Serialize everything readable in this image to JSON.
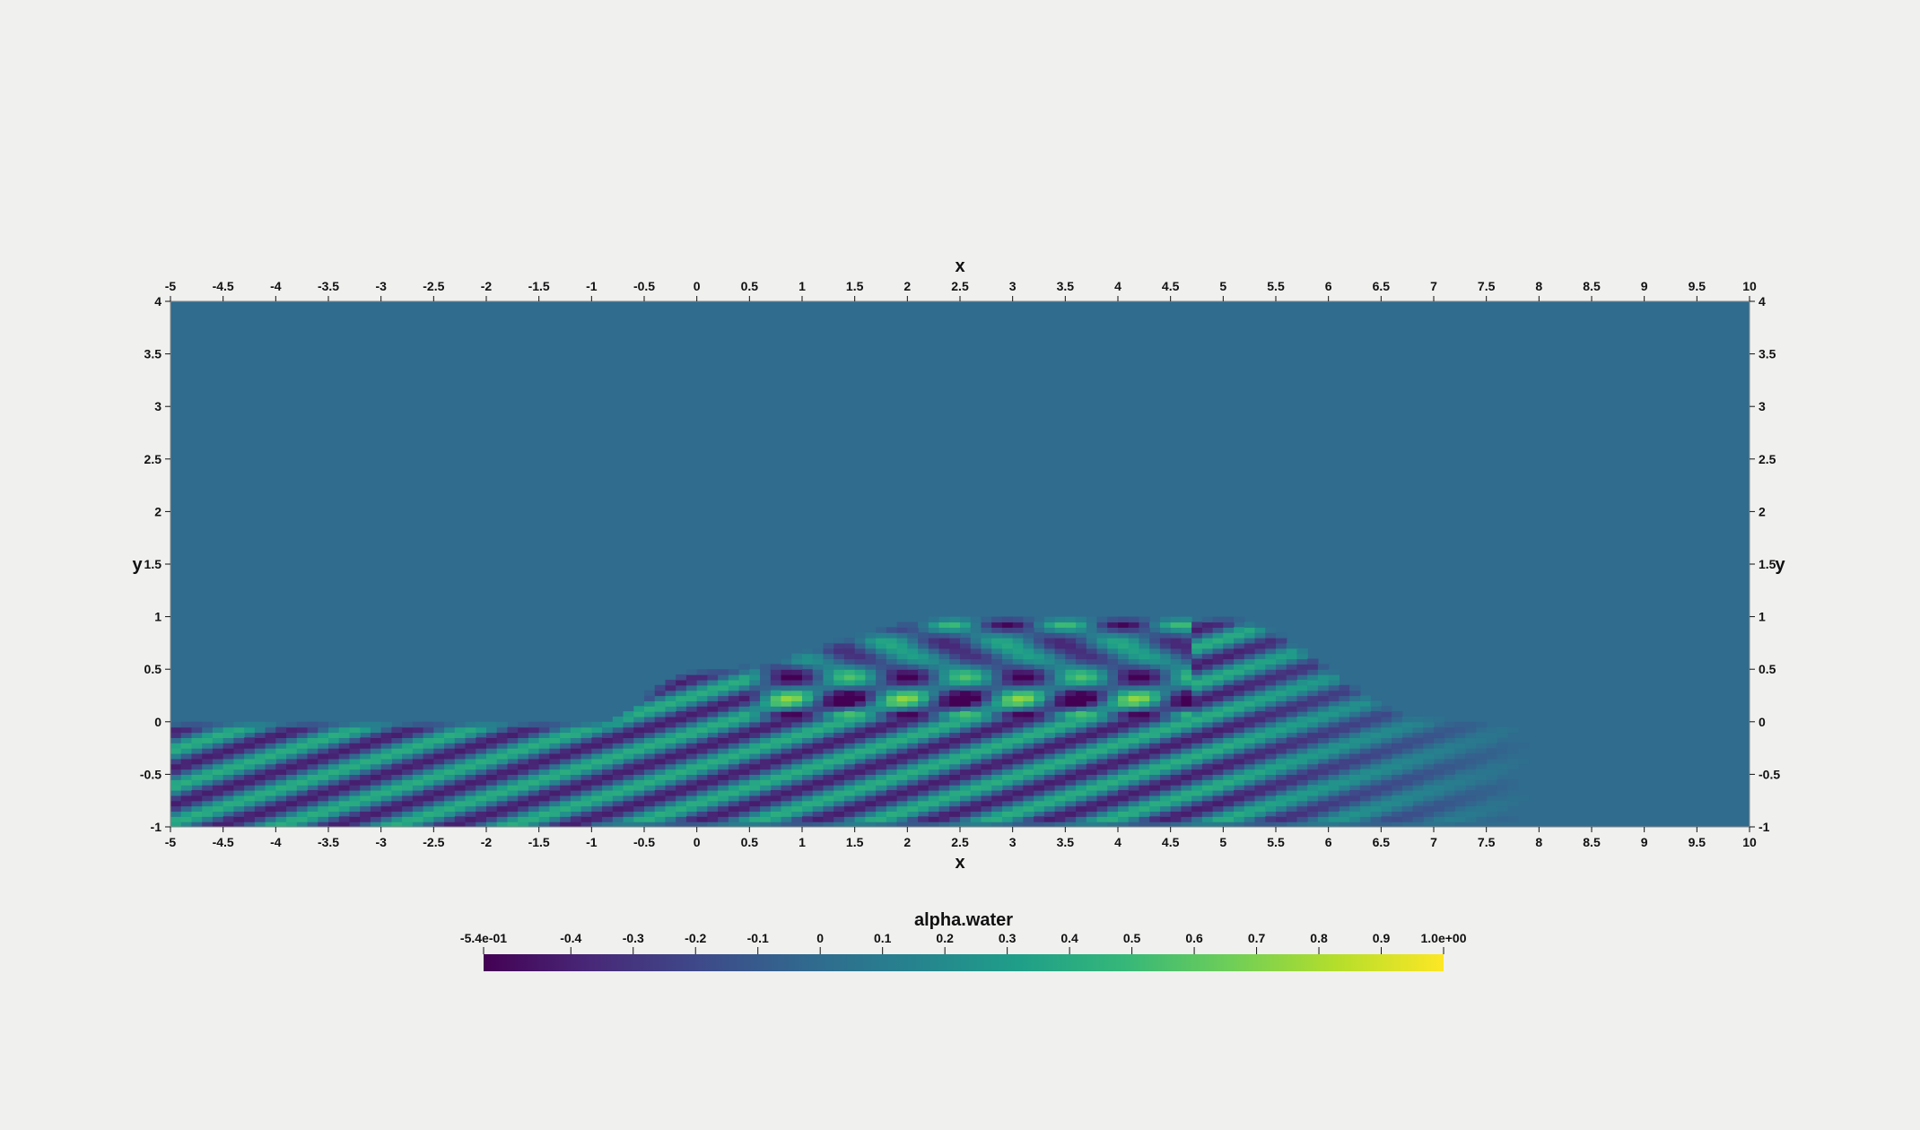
{
  "chart_data": {
    "type": "heatmap",
    "x_axis_label": "x",
    "y_axis_label": "y",
    "xlim": [
      -5,
      10
    ],
    "ylim": [
      -1,
      4
    ],
    "x_ticks": [
      -5,
      -4.5,
      -4,
      -3.5,
      -3,
      -2.5,
      -2,
      -1.5,
      -1,
      -0.5,
      0,
      0.5,
      1,
      1.5,
      2,
      2.5,
      3,
      3.5,
      4,
      4.5,
      5,
      5.5,
      6,
      6.5,
      7,
      7.5,
      8,
      8.5,
      9,
      9.5,
      10
    ],
    "y_ticks": [
      -1,
      -0.5,
      0,
      0.5,
      1,
      1.5,
      2,
      2.5,
      3,
      3.5,
      4
    ],
    "background_value": 0,
    "field_description": "wave interference pattern bounded by the bathymetry surface; region above surface has uniform value",
    "surface_profile": {
      "x": [
        -5,
        -1,
        0,
        2.5,
        5,
        7,
        8
      ],
      "y": [
        0,
        0,
        0.5,
        1,
        1,
        0.05,
        0
      ]
    },
    "colorbar": {
      "title": "alpha.water",
      "range": [
        -0.54,
        1.0
      ],
      "ticks": [
        {
          "value": -0.54,
          "label": "-5.4e-01"
        },
        {
          "value": -0.4,
          "label": "-0.4"
        },
        {
          "value": -0.3,
          "label": "-0.3"
        },
        {
          "value": -0.2,
          "label": "-0.2"
        },
        {
          "value": -0.1,
          "label": "-0.1"
        },
        {
          "value": 0,
          "label": "0"
        },
        {
          "value": 0.1,
          "label": "0.1"
        },
        {
          "value": 0.2,
          "label": "0.2"
        },
        {
          "value": 0.3,
          "label": "0.3"
        },
        {
          "value": 0.4,
          "label": "0.4"
        },
        {
          "value": 0.5,
          "label": "0.5"
        },
        {
          "value": 0.6,
          "label": "0.6"
        },
        {
          "value": 0.7,
          "label": "0.7"
        },
        {
          "value": 0.8,
          "label": "0.8"
        },
        {
          "value": 0.9,
          "label": "0.9"
        },
        {
          "value": 1.0,
          "label": "1.0e+00"
        }
      ],
      "colormap": "viridis",
      "colormap_stops": [
        "#440154",
        "#482878",
        "#3e4989",
        "#31688e",
        "#26828e",
        "#1f9e89",
        "#35b779",
        "#6ece58",
        "#b5de2b",
        "#fde725"
      ]
    }
  }
}
